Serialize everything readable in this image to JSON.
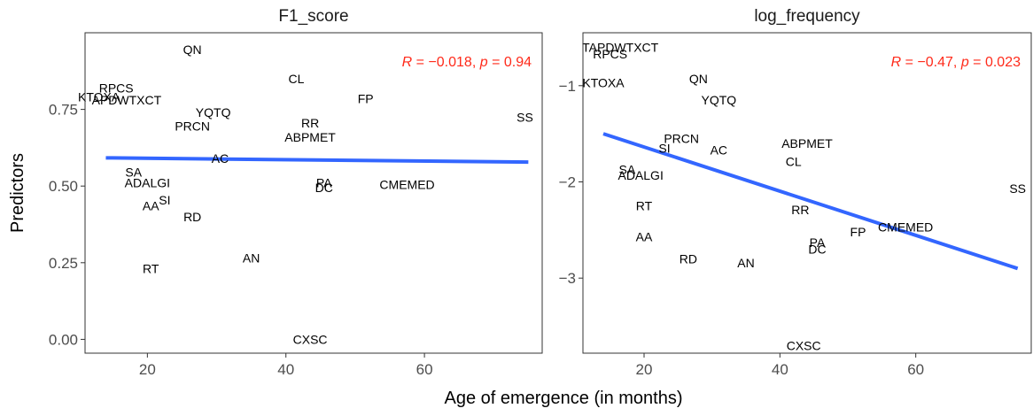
{
  "chart_data": {
    "type": "scatter",
    "xlabel": "Age of emergence (in months)",
    "ylabel": "Predictors",
    "x_ticks": [
      20,
      40,
      60
    ],
    "panels": [
      {
        "title": "F1_score",
        "xlim": [
          11,
          77
        ],
        "ylim": [
          -0.045,
          1.0
        ],
        "y_ticks": [
          {
            "value": 0.0,
            "label": "0.00"
          },
          {
            "value": 0.25,
            "label": "0.25"
          },
          {
            "value": 0.5,
            "label": "0.50"
          },
          {
            "value": 0.75,
            "label": "0.75"
          }
        ],
        "fit": {
          "x": [
            14,
            75
          ],
          "y": [
            0.592,
            0.578
          ]
        },
        "stat": {
          "r": "−0.018",
          "p": "0.94"
        },
        "points": [
          {
            "label": "QN",
            "x": 26.5,
            "y": 0.945
          },
          {
            "label": "CL",
            "x": 41.5,
            "y": 0.85
          },
          {
            "label": "RPCS",
            "x": 15.5,
            "y": 0.82
          },
          {
            "label": "KTOXA",
            "x": 13,
            "y": 0.79
          },
          {
            "label": "APDWTXCT",
            "x": 17,
            "y": 0.78
          },
          {
            "label": "FP",
            "x": 51.5,
            "y": 0.785
          },
          {
            "label": "SS",
            "x": 74.5,
            "y": 0.725
          },
          {
            "label": "YQTQ",
            "x": 29.5,
            "y": 0.74
          },
          {
            "label": "RR",
            "x": 43.5,
            "y": 0.705
          },
          {
            "label": "PRCN",
            "x": 26.5,
            "y": 0.695
          },
          {
            "label": "ABPMET",
            "x": 43.5,
            "y": 0.66
          },
          {
            "label": "AC",
            "x": 30.5,
            "y": 0.59
          },
          {
            "label": "SA",
            "x": 18,
            "y": 0.545
          },
          {
            "label": "ADALGI",
            "x": 20,
            "y": 0.51
          },
          {
            "label": "PA",
            "x": 45.5,
            "y": 0.51
          },
          {
            "label": "DC",
            "x": 45.5,
            "y": 0.495
          },
          {
            "label": "CMEMED",
            "x": 57.5,
            "y": 0.505
          },
          {
            "label": "SI",
            "x": 22.5,
            "y": 0.455
          },
          {
            "label": "AA",
            "x": 20.5,
            "y": 0.435
          },
          {
            "label": "RD",
            "x": 26.5,
            "y": 0.4
          },
          {
            "label": "AN",
            "x": 35,
            "y": 0.265
          },
          {
            "label": "RT",
            "x": 20.5,
            "y": 0.23
          },
          {
            "label": "CXSC",
            "x": 43.5,
            "y": 0.0
          }
        ]
      },
      {
        "title": "log_frequency",
        "xlim": [
          11,
          77
        ],
        "ylim": [
          -3.78,
          -0.45
        ],
        "y_ticks": [
          {
            "value": -1,
            "label": "−1"
          },
          {
            "value": -2,
            "label": "−2"
          },
          {
            "value": -3,
            "label": "−3"
          }
        ],
        "fit": {
          "x": [
            14,
            75
          ],
          "y": [
            -1.5,
            -2.9
          ]
        },
        "stat": {
          "r": "−0.47",
          "p": "0.023"
        },
        "points": [
          {
            "label": "TAPDWTXCT",
            "x": 16.5,
            "y": -0.6
          },
          {
            "label": "RPCS",
            "x": 15,
            "y": -0.67
          },
          {
            "label": "KTOXA",
            "x": 14,
            "y": -0.97
          },
          {
            "label": "QN",
            "x": 28,
            "y": -0.93
          },
          {
            "label": "YQTQ",
            "x": 31,
            "y": -1.15
          },
          {
            "label": "PRCN",
            "x": 25.5,
            "y": -1.55
          },
          {
            "label": "SI",
            "x": 23,
            "y": -1.65
          },
          {
            "label": "AC",
            "x": 31,
            "y": -1.67
          },
          {
            "label": "ABPMET",
            "x": 44,
            "y": -1.6
          },
          {
            "label": "CL",
            "x": 42,
            "y": -1.79
          },
          {
            "label": "SA",
            "x": 17.5,
            "y": -1.87
          },
          {
            "label": "ADALGI",
            "x": 19.5,
            "y": -1.93
          },
          {
            "label": "SS",
            "x": 75,
            "y": -2.07
          },
          {
            "label": "RT",
            "x": 20,
            "y": -2.25
          },
          {
            "label": "RR",
            "x": 43,
            "y": -2.29
          },
          {
            "label": "CMEMED",
            "x": 58.5,
            "y": -2.47
          },
          {
            "label": "FP",
            "x": 51.5,
            "y": -2.52
          },
          {
            "label": "AA",
            "x": 20,
            "y": -2.57
          },
          {
            "label": "PA",
            "x": 45.5,
            "y": -2.63
          },
          {
            "label": "DC",
            "x": 45.5,
            "y": -2.7
          },
          {
            "label": "RD",
            "x": 26.5,
            "y": -2.8
          },
          {
            "label": "AN",
            "x": 35,
            "y": -2.84
          },
          {
            "label": "CXSC",
            "x": 43.5,
            "y": -3.7
          }
        ]
      }
    ]
  },
  "colors": {
    "fit_line": "#3366ff",
    "stat_text": "#ff2a1a",
    "panel_border": "#333333",
    "tick_text": "#4d4d4d"
  }
}
